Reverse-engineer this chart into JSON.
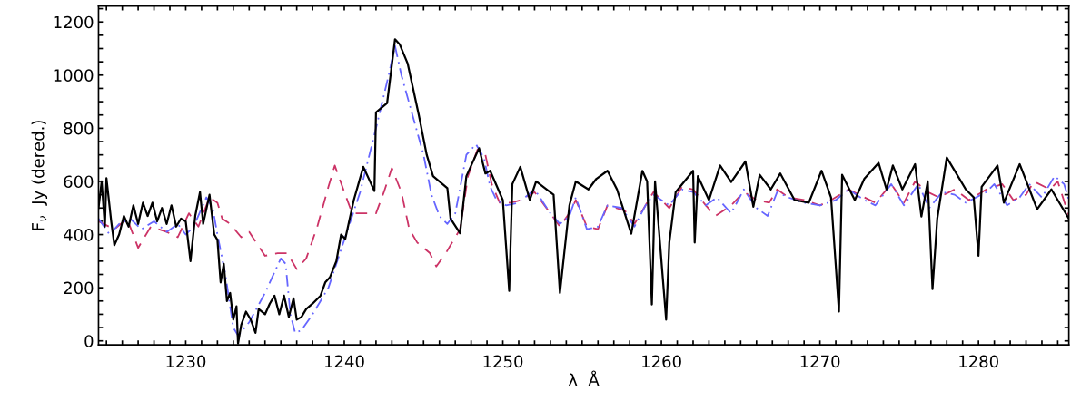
{
  "chart_data": {
    "type": "line",
    "xlabel": "λ  Å",
    "ylabel": "F$_{ν}$  Jy (dered.)",
    "xlim": [
      1224.5,
      1285.7
    ],
    "ylim": [
      -15,
      1260
    ],
    "xticks": [
      {
        "value": 1225,
        "label": null
      },
      {
        "value": 1226,
        "label": null
      },
      {
        "value": 1227,
        "label": null
      },
      {
        "value": 1228,
        "label": null
      },
      {
        "value": 1229,
        "label": null
      },
      1230,
      {
        "value": 1231,
        "label": null
      },
      {
        "value": 1232,
        "label": null
      },
      {
        "value": 1233,
        "label": null
      },
      {
        "value": 1234,
        "label": null
      },
      {
        "value": 1235,
        "label": null
      },
      {
        "value": 1236,
        "label": null
      },
      {
        "value": 1237,
        "label": null
      },
      {
        "value": 1238,
        "label": null
      },
      {
        "value": 1239,
        "label": null
      },
      1240,
      {
        "value": 1241,
        "label": null
      },
      {
        "value": 1242,
        "label": null
      },
      {
        "value": 1243,
        "label": null
      },
      {
        "value": 1244,
        "label": null
      },
      {
        "value": 1245,
        "label": null
      },
      {
        "value": 1246,
        "label": null
      },
      {
        "value": 1247,
        "label": null
      },
      {
        "value": 1248,
        "label": null
      },
      {
        "value": 1249,
        "label": null
      },
      1250,
      {
        "value": 1251,
        "label": null
      },
      {
        "value": 1252,
        "label": null
      },
      {
        "value": 1253,
        "label": null
      },
      {
        "value": 1254,
        "label": null
      },
      {
        "value": 1255,
        "label": null
      },
      {
        "value": 1256,
        "label": null
      },
      {
        "value": 1257,
        "label": null
      },
      {
        "value": 1258,
        "label": null
      },
      {
        "value": 1259,
        "label": null
      },
      1260,
      {
        "value": 1261,
        "label": null
      },
      {
        "value": 1262,
        "label": null
      },
      {
        "value": 1263,
        "label": null
      },
      {
        "value": 1264,
        "label": null
      },
      {
        "value": 1265,
        "label": null
      },
      {
        "value": 1266,
        "label": null
      },
      {
        "value": 1267,
        "label": null
      },
      {
        "value": 1268,
        "label": null
      },
      {
        "value": 1269,
        "label": null
      },
      1270,
      {
        "value": 1271,
        "label": null
      },
      {
        "value": 1272,
        "label": null
      },
      {
        "value": 1273,
        "label": null
      },
      {
        "value": 1274,
        "label": null
      },
      {
        "value": 1275,
        "label": null
      },
      {
        "value": 1276,
        "label": null
      },
      {
        "value": 1277,
        "label": null
      },
      {
        "value": 1278,
        "label": null
      },
      {
        "value": 1279,
        "label": null
      },
      1280,
      {
        "value": 1281,
        "label": null
      },
      {
        "value": 1282,
        "label": null
      },
      {
        "value": 1283,
        "label": null
      },
      {
        "value": 1284,
        "label": null
      },
      {
        "value": 1285,
        "label": null
      }
    ],
    "yticks": [
      0,
      {
        "value": 50,
        "label": null
      },
      {
        "value": 100,
        "label": null
      },
      {
        "value": 150,
        "label": null
      },
      200,
      {
        "value": 250,
        "label": null
      },
      {
        "value": 300,
        "label": null
      },
      {
        "value": 350,
        "label": null
      },
      400,
      {
        "value": 450,
        "label": null
      },
      {
        "value": 500,
        "label": null
      },
      {
        "value": 550,
        "label": null
      },
      600,
      {
        "value": 650,
        "label": null
      },
      {
        "value": 700,
        "label": null
      },
      {
        "value": 750,
        "label": null
      },
      800,
      {
        "value": 850,
        "label": null
      },
      {
        "value": 900,
        "label": null
      },
      {
        "value": 950,
        "label": null
      },
      1000,
      {
        "value": 1050,
        "label": null
      },
      {
        "value": 1100,
        "label": null
      },
      {
        "value": 1150,
        "label": null
      },
      1200,
      {
        "value": 1250,
        "label": null
      }
    ],
    "grid": false,
    "legend": false,
    "series": [
      {
        "color": "#cc3366",
        "line_style": "dashed",
        "x": [
          1224.5,
          1225.5,
          1226.3,
          1227.0,
          1227.8,
          1228.8,
          1229.5,
          1230.2,
          1230.8,
          1231.5,
          1232.0,
          1232.3,
          1232.8,
          1233.5,
          1234.0,
          1235.0,
          1235.8,
          1236.4,
          1237.0,
          1237.6,
          1238.3,
          1239.0,
          1239.4,
          1240.0,
          1240.5,
          1241.3,
          1242.0,
          1242.5,
          1243.0,
          1243.6,
          1244.1,
          1244.6,
          1245.4,
          1245.8,
          1246.4,
          1247.3,
          1247.8,
          1248.4,
          1248.9,
          1249.3,
          1249.8,
          1250.5,
          1251.2,
          1252.0,
          1253.0,
          1253.6,
          1254.3,
          1254.6,
          1255.3,
          1256.0,
          1256.6,
          1257.7,
          1258.3,
          1259.0,
          1259.5,
          1260.5,
          1261.3,
          1262.0,
          1262.8,
          1263.4,
          1264.4,
          1265.2,
          1266.0,
          1266.8,
          1267.3,
          1268.0,
          1269.0,
          1270.0,
          1270.7,
          1271.8,
          1272.8,
          1273.5,
          1274.5,
          1275.3,
          1276.0,
          1276.8,
          1277.5,
          1278.5,
          1279.4,
          1280.5,
          1281.5,
          1282.2,
          1283.0,
          1283.5,
          1284.5,
          1285.0,
          1285.7
        ],
        "values": [
          450,
          420,
          460,
          350,
          430,
          410,
          390,
          480,
          430,
          540,
          520,
          460,
          440,
          390,
          410,
          320,
          330,
          330,
          270,
          310,
          430,
          580,
          660,
          560,
          480,
          480,
          480,
          560,
          650,
          560,
          420,
          370,
          330,
          280,
          330,
          420,
          620,
          720,
          700,
          590,
          520,
          520,
          530,
          560,
          480,
          430,
          490,
          530,
          430,
          420,
          510,
          490,
          440,
          510,
          560,
          500,
          580,
          570,
          510,
          470,
          510,
          560,
          530,
          520,
          570,
          540,
          530,
          510,
          530,
          570,
          540,
          520,
          590,
          520,
          600,
          560,
          540,
          570,
          530,
          570,
          590,
          530,
          550,
          600,
          570,
          600,
          470
        ]
      },
      {
        "color": "#6666ff",
        "line_style": "dashdot",
        "x": [
          1224.5,
          1225.2,
          1225.8,
          1226.5,
          1227.2,
          1228.0,
          1228.8,
          1229.5,
          1230.0,
          1230.5,
          1231.3,
          1231.7,
          1232.0,
          1232.5,
          1233.0,
          1233.3,
          1234.0,
          1235.0,
          1236.0,
          1236.3,
          1236.6,
          1236.9,
          1237.3,
          1238.0,
          1239.0,
          1240.0,
          1241.0,
          1242.0,
          1242.8,
          1243.2,
          1243.6,
          1244.3,
          1245.0,
          1245.5,
          1246.0,
          1246.5,
          1247.0,
          1247.7,
          1248.3,
          1248.8,
          1249.2,
          1249.6,
          1250.2,
          1251.0,
          1252.0,
          1253.0,
          1253.6,
          1254.2,
          1254.6,
          1255.3,
          1256.0,
          1256.6,
          1257.5,
          1258.3,
          1259.0,
          1259.5,
          1260.5,
          1261.3,
          1262.0,
          1262.8,
          1263.5,
          1264.4,
          1265.2,
          1266.0,
          1266.7,
          1267.3,
          1268.0,
          1269.0,
          1270.0,
          1271.0,
          1271.8,
          1272.8,
          1273.5,
          1274.5,
          1275.3,
          1276.2,
          1276.9,
          1277.7,
          1278.5,
          1279.2,
          1280.5,
          1281.0,
          1281.8,
          1282.6,
          1283.2,
          1284.0,
          1284.8,
          1285.4,
          1285.7
        ],
        "values": [
          460,
          400,
          440,
          460,
          420,
          450,
          410,
          440,
          400,
          430,
          540,
          500,
          400,
          250,
          50,
          20,
          70,
          180,
          310,
          290,
          100,
          30,
          40,
          100,
          200,
          380,
          560,
          800,
          1000,
          1110,
          1000,
          850,
          700,
          550,
          470,
          440,
          480,
          700,
          740,
          690,
          580,
          530,
          510,
          520,
          570,
          480,
          440,
          470,
          540,
          420,
          430,
          510,
          500,
          430,
          510,
          550,
          510,
          570,
          560,
          510,
          540,
          480,
          570,
          500,
          470,
          560,
          540,
          520,
          510,
          530,
          570,
          530,
          510,
          590,
          510,
          590,
          500,
          560,
          550,
          520,
          560,
          590,
          510,
          540,
          590,
          540,
          620,
          590,
          530
        ]
      },
      {
        "color": "#000000",
        "line_style": "solid",
        "x": [
          1224.5,
          1224.7,
          1224.9,
          1225.0,
          1225.3,
          1225.5,
          1225.8,
          1226.1,
          1226.4,
          1226.7,
          1227.0,
          1227.3,
          1227.6,
          1227.9,
          1228.2,
          1228.5,
          1228.8,
          1229.1,
          1229.4,
          1229.7,
          1230.0,
          1230.3,
          1230.6,
          1230.9,
          1231.1,
          1231.5,
          1231.8,
          1232.0,
          1232.2,
          1232.4,
          1232.6,
          1232.8,
          1233.0,
          1233.2,
          1233.3,
          1233.5,
          1233.8,
          1234.1,
          1234.4,
          1234.6,
          1235.0,
          1235.3,
          1235.6,
          1235.9,
          1236.2,
          1236.5,
          1236.8,
          1237.0,
          1237.3,
          1237.6,
          1238.0,
          1238.5,
          1238.8,
          1239.1,
          1239.5,
          1239.8,
          1240.06,
          1240.6,
          1241.2,
          1241.9,
          1242.0,
          1242.7,
          1243.2,
          1243.5,
          1244.0,
          1244.7,
          1245.2,
          1245.6,
          1246.5,
          1246.7,
          1247.3,
          1247.7,
          1248.5,
          1248.9,
          1249.2,
          1250.0,
          1250.4,
          1250.6,
          1251.1,
          1251.7,
          1252.1,
          1253.2,
          1253.6,
          1254.2,
          1254.6,
          1255.4,
          1255.9,
          1256.6,
          1257.2,
          1258.1,
          1258.8,
          1259.1,
          1259.4,
          1259.6,
          1260.3,
          1260.5,
          1260.9,
          1262.0,
          1262.1,
          1262.3,
          1263.0,
          1263.7,
          1264.4,
          1265.3,
          1265.8,
          1266.2,
          1266.9,
          1267.5,
          1268.4,
          1269.3,
          1270.1,
          1270.7,
          1271.2,
          1271.4,
          1272.2,
          1272.8,
          1273.7,
          1274.2,
          1274.6,
          1275.2,
          1276.0,
          1276.4,
          1276.8,
          1277.1,
          1277.4,
          1278.0,
          1278.6,
          1279.2,
          1279.7,
          1280.0,
          1280.2,
          1281.2,
          1281.6,
          1282.6,
          1283.7,
          1284.6,
          1285.7
        ],
        "values": [
          500,
          600,
          430,
          612,
          450,
          360,
          400,
          470,
          430,
          510,
          440,
          520,
          470,
          520,
          450,
          500,
          440,
          510,
          430,
          460,
          450,
          300,
          470,
          560,
          440,
          550,
          400,
          380,
          220,
          290,
          150,
          180,
          80,
          130,
          -10,
          60,
          110,
          80,
          30,
          120,
          100,
          140,
          170,
          100,
          170,
          90,
          160,
          80,
          90,
          120,
          140,
          170,
          220,
          240,
          300,
          400,
          383,
          530,
          655,
          564,
          860,
          895,
          1135,
          1115,
          1043,
          850,
          700,
          620,
          575,
          460,
          405,
          620,
          725,
          630,
          640,
          530,
          188,
          590,
          655,
          530,
          600,
          550,
          180,
          510,
          600,
          570,
          610,
          640,
          570,
          403,
          640,
          600,
          137,
          600,
          80,
          370,
          560,
          640,
          370,
          620,
          530,
          660,
          598,
          675,
          505,
          625,
          570,
          630,
          530,
          520,
          640,
          540,
          110,
          625,
          530,
          610,
          670,
          570,
          660,
          570,
          665,
          468,
          600,
          195,
          460,
          690,
          630,
          570,
          540,
          320,
          580,
          660,
          520,
          665,
          495,
          570,
          460
        ]
      }
    ]
  }
}
